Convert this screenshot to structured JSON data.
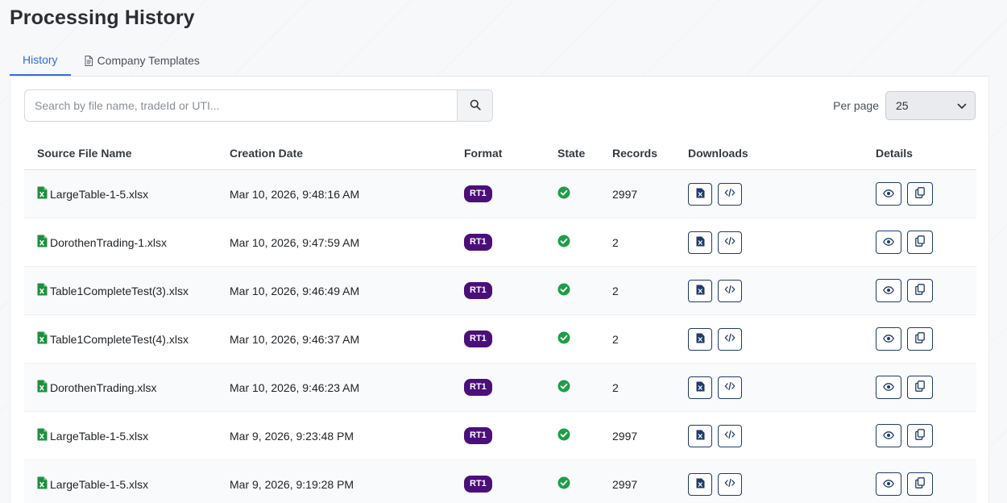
{
  "page_title": "Processing History",
  "tabs": [
    {
      "label": "History",
      "active": true
    },
    {
      "label": "Company Templates",
      "active": false,
      "icon": "document-icon"
    }
  ],
  "search": {
    "placeholder": "Search by file name, tradeId or UTI...",
    "value": ""
  },
  "per_page": {
    "label": "Per page",
    "value": "25"
  },
  "table": {
    "headers": {
      "source_file": "Source File Name",
      "creation_date": "Creation Date",
      "format": "Format",
      "state": "State",
      "records": "Records",
      "downloads": "Downloads",
      "details": "Details"
    },
    "rows": [
      {
        "file": "LargeTable-1-5.xlsx",
        "date": "Mar 10, 2026, 9:48:16 AM",
        "format": "RT1",
        "state": "success",
        "records": "2997"
      },
      {
        "file": "DorothenTrading-1.xlsx",
        "date": "Mar 10, 2026, 9:47:59 AM",
        "format": "RT1",
        "state": "success",
        "records": "2"
      },
      {
        "file": "Table1CompleteTest(3).xlsx",
        "date": "Mar 10, 2026, 9:46:49 AM",
        "format": "RT1",
        "state": "success",
        "records": "2"
      },
      {
        "file": "Table1CompleteTest(4).xlsx",
        "date": "Mar 10, 2026, 9:46:37 AM",
        "format": "RT1",
        "state": "success",
        "records": "2"
      },
      {
        "file": "DorothenTrading.xlsx",
        "date": "Mar 10, 2026, 9:46:23 AM",
        "format": "RT1",
        "state": "success",
        "records": "2"
      },
      {
        "file": "LargeTable-1-5.xlsx",
        "date": "Mar 9, 2026, 9:23:48 PM",
        "format": "RT1",
        "state": "success",
        "records": "2997"
      },
      {
        "file": "LargeTable-1-5.xlsx",
        "date": "Mar 9, 2026, 9:19:28 PM",
        "format": "RT1",
        "state": "success",
        "records": "2997"
      }
    ]
  },
  "colors": {
    "accent": "#2f6fd6",
    "badge": "#4b0f7a",
    "success": "#1e9e4a",
    "excel": "#1f8f3f",
    "button_border": "#1f3b68"
  }
}
